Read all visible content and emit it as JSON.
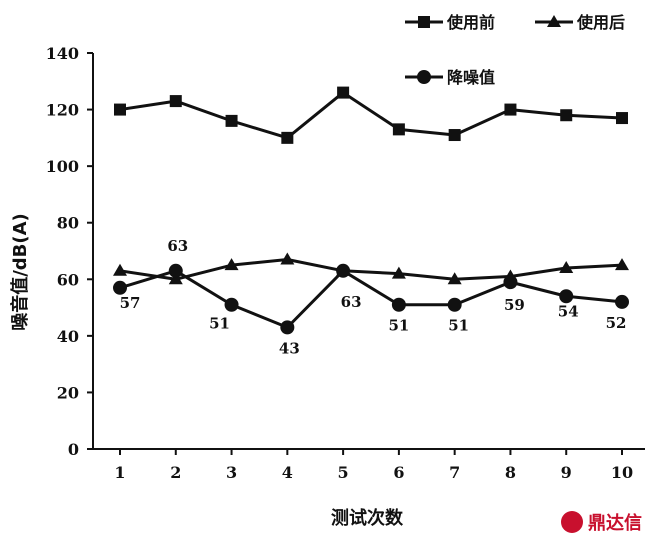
{
  "chart_data": {
    "type": "line",
    "x": [
      1,
      2,
      3,
      4,
      5,
      6,
      7,
      8,
      9,
      10
    ],
    "xlabel": "测试次数",
    "ylabel": "噪音值/dB(A)",
    "ylim": [
      0,
      140
    ],
    "yticks": [
      0,
      20,
      40,
      60,
      80,
      100,
      120,
      140
    ],
    "grid": false,
    "legend_position": "top-right",
    "series": [
      {
        "name": "使用前",
        "marker": "square",
        "values": [
          120,
          123,
          116,
          110,
          126,
          113,
          111,
          120,
          118,
          117
        ]
      },
      {
        "name": "使用后",
        "marker": "triangle",
        "values": [
          63,
          60,
          65,
          67,
          63,
          62,
          60,
          61,
          64,
          65
        ]
      },
      {
        "name": "降噪值",
        "marker": "circle",
        "values": [
          57,
          63,
          51,
          43,
          63,
          51,
          51,
          59,
          54,
          52
        ],
        "data_labels": [
          "57",
          "63",
          "51",
          "43",
          "63",
          "51",
          "51",
          "59",
          "54",
          "52"
        ]
      }
    ],
    "line_color": "#111111"
  },
  "watermark": {
    "text": "鼎达信",
    "color": "#c8102e"
  }
}
